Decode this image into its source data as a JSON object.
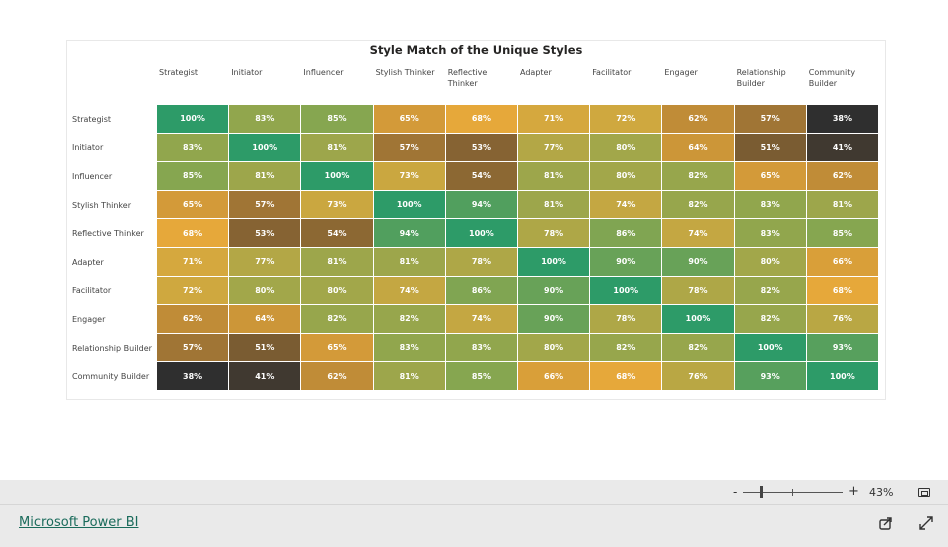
{
  "colors": {
    "high": "#2d9b68",
    "mid_high": "#86a650",
    "mid": "#e6a83a",
    "low": "#866333",
    "lowest": "#2f2f2f"
  },
  "chart_data": {
    "type": "heatmap",
    "title": "Style Match of the Unique Styles",
    "columns": [
      "Strategist",
      "Initiator",
      "Influencer",
      "Stylish Thinker",
      "Reflective Thinker",
      "Adapter",
      "Facilitator",
      "Engager",
      "Relationship Builder",
      "Community Builder"
    ],
    "rows": [
      "Strategist",
      "Initiator",
      "Influencer",
      "Stylish Thinker",
      "Reflective Thinker",
      "Adapter",
      "Facilitator",
      "Engager",
      "Relationship Builder",
      "Community Builder"
    ],
    "values": [
      [
        100,
        83,
        85,
        65,
        68,
        71,
        72,
        62,
        57,
        38
      ],
      [
        83,
        100,
        81,
        57,
        53,
        77,
        80,
        64,
        51,
        41
      ],
      [
        85,
        81,
        100,
        73,
        54,
        81,
        80,
        82,
        65,
        62
      ],
      [
        65,
        57,
        73,
        100,
        94,
        81,
        74,
        82,
        83,
        81
      ],
      [
        68,
        53,
        54,
        94,
        100,
        78,
        86,
        74,
        83,
        85
      ],
      [
        71,
        77,
        81,
        81,
        78,
        100,
        90,
        90,
        80,
        66
      ],
      [
        72,
        80,
        80,
        74,
        86,
        90,
        100,
        78,
        82,
        68
      ],
      [
        62,
        64,
        82,
        82,
        74,
        90,
        78,
        100,
        82,
        76
      ],
      [
        57,
        51,
        65,
        83,
        83,
        80,
        82,
        82,
        100,
        93
      ],
      [
        38,
        41,
        62,
        81,
        85,
        66,
        68,
        76,
        93,
        100
      ]
    ],
    "unit": "%"
  },
  "footer": {
    "zoom_minus": "-",
    "zoom_plus": "+",
    "zoom": "43%",
    "link": "Microsoft Power BI"
  }
}
